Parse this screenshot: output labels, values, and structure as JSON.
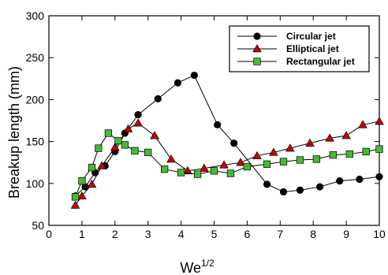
{
  "chart_data": {
    "type": "line",
    "xlabel_base": "We",
    "xlabel_sup": "1/2",
    "ylabel": "Breakup length (mm)",
    "xlim": [
      0,
      10
    ],
    "ylim": [
      50,
      300
    ],
    "xticks": [
      0,
      1,
      2,
      3,
      4,
      5,
      6,
      7,
      8,
      9,
      10
    ],
    "yticks": [
      50,
      100,
      150,
      200,
      250,
      300
    ],
    "legend_position": "top-right",
    "grid": false,
    "series": [
      {
        "name": "Circular jet",
        "marker": "circle",
        "color": "#000000",
        "x": [
          0.8,
          1.1,
          1.4,
          1.7,
          2.0,
          2.3,
          2.7,
          3.3,
          3.9,
          4.4,
          5.1,
          5.6,
          6.6,
          7.1,
          7.6,
          8.2,
          8.8,
          9.4,
          10.0
        ],
        "y": [
          85,
          96,
          113,
          121,
          138,
          160,
          182,
          201,
          220,
          229,
          170,
          148,
          99,
          90,
          92,
          96,
          103,
          105,
          108
        ]
      },
      {
        "name": "Elliptical jet",
        "marker": "triangle",
        "color": "#cc0000",
        "x": [
          0.8,
          1.0,
          1.3,
          1.6,
          2.0,
          2.4,
          2.7,
          3.2,
          3.7,
          4.2,
          4.7,
          5.3,
          5.8,
          6.3,
          6.8,
          7.3,
          7.9,
          8.5,
          9.0,
          9.5,
          10.0
        ],
        "y": [
          74,
          85,
          99,
          121,
          143,
          165,
          172,
          157,
          129,
          115,
          118,
          122,
          125,
          133,
          137,
          142,
          148,
          154,
          157,
          170,
          174
        ]
      },
      {
        "name": "Rectangular jet",
        "marker": "square",
        "color": "#44bb33",
        "x": [
          0.8,
          1.0,
          1.3,
          1.5,
          1.8,
          2.1,
          2.3,
          2.6,
          3.0,
          3.5,
          4.0,
          4.5,
          5.0,
          5.5,
          6.0,
          6.6,
          7.1,
          7.6,
          8.1,
          8.6,
          9.1,
          9.6,
          10.0
        ],
        "y": [
          84,
          103,
          119,
          142,
          160,
          151,
          146,
          139,
          137,
          117,
          113,
          111,
          115,
          112,
          120,
          123,
          126,
          128,
          129,
          134,
          135,
          138,
          141
        ]
      }
    ]
  }
}
